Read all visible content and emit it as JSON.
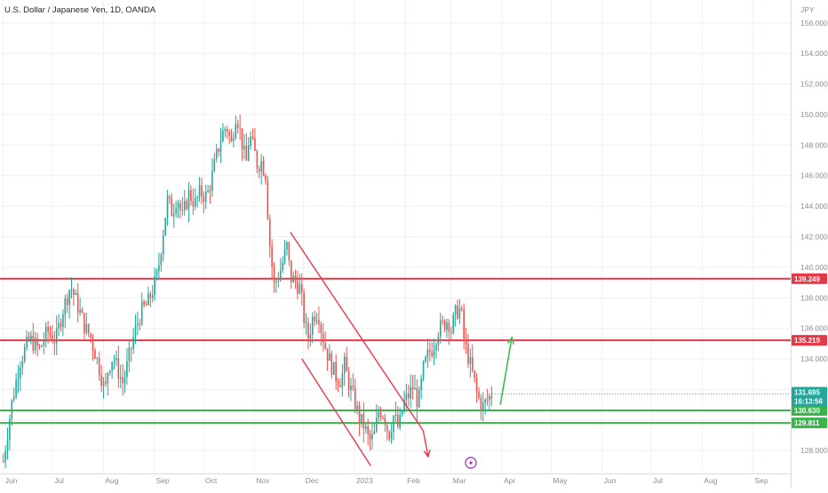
{
  "header": {
    "symbol_title": "U.S. Dollar / Japanese Yen, 1D, OANDA",
    "currency": "JPY"
  },
  "colors": {
    "up": "#26a69a",
    "down": "#ef5350",
    "resistance": "#e53947",
    "support": "#3ab54a",
    "channel": "#e53947",
    "arrow": "#3ab54a",
    "grid": "#eef0f3"
  },
  "chart_data": {
    "type": "candlestick",
    "ylim": [
      126.5,
      157.5
    ],
    "y_ticks": [
      "128.000",
      "130.000",
      "132.000",
      "134.000",
      "136.000",
      "138.000",
      "140.000",
      "142.000",
      "144.000",
      "146.000",
      "148.000",
      "150.000",
      "152.000",
      "154.000",
      "156.000"
    ],
    "x_ticks": [
      {
        "label": "Jun",
        "day": 0
      },
      {
        "label": "Jul",
        "day": 30
      },
      {
        "label": "Aug",
        "day": 61
      },
      {
        "label": "Sep",
        "day": 92
      },
      {
        "label": "Oct",
        "day": 122
      },
      {
        "label": "Nov",
        "day": 153
      },
      {
        "label": "Dec",
        "day": 183
      },
      {
        "label": "2023",
        "day": 214
      },
      {
        "label": "Feb",
        "day": 245
      },
      {
        "label": "Mar",
        "day": 273
      },
      {
        "label": "Apr",
        "day": 304
      },
      {
        "label": "May",
        "day": 334
      },
      {
        "label": "Jun",
        "day": 365
      },
      {
        "label": "Jul",
        "day": 395
      },
      {
        "label": "Aug",
        "day": 426
      },
      {
        "label": "Sep",
        "day": 457
      }
    ],
    "x_range_days": [
      -2,
      480
    ],
    "price_path": [
      [
        0,
        127.3
      ],
      [
        5,
        131
      ],
      [
        10,
        133.8
      ],
      [
        16,
        135.3
      ],
      [
        22,
        134.6
      ],
      [
        27,
        135.8
      ],
      [
        32,
        135.2
      ],
      [
        36,
        137.1
      ],
      [
        41,
        138.8
      ],
      [
        45,
        137.6
      ],
      [
        50,
        136.0
      ],
      [
        53,
        135.5
      ],
      [
        56,
        134.4
      ],
      [
        59,
        133.2
      ],
      [
        62,
        131.8
      ],
      [
        64,
        133.5
      ],
      [
        67,
        134.2
      ],
      [
        70,
        133.2
      ],
      [
        73,
        132.4
      ],
      [
        76,
        133.8
      ],
      [
        80,
        135.7
      ],
      [
        84,
        137.1
      ],
      [
        88,
        137.6
      ],
      [
        91,
        138.5
      ],
      [
        94,
        139.5
      ],
      [
        97,
        142.0
      ],
      [
        100,
        144.4
      ],
      [
        103,
        143.6
      ],
      [
        106,
        144.7
      ],
      [
        109,
        143.2
      ],
      [
        113,
        144.8
      ],
      [
        117,
        144.2
      ],
      [
        120,
        144.9
      ],
      [
        124,
        144.6
      ],
      [
        127,
        145.8
      ],
      [
        130,
        147.3
      ],
      [
        133,
        148.6
      ],
      [
        136,
        149.3
      ],
      [
        139,
        148.0
      ],
      [
        142,
        150.2
      ],
      [
        145,
        148.5
      ],
      [
        148,
        146.7
      ],
      [
        150,
        148.7
      ],
      [
        153,
        147.6
      ],
      [
        155,
        146.6
      ],
      [
        157,
        147.0
      ],
      [
        160,
        146.1
      ],
      [
        162,
        142.0
      ],
      [
        165,
        138.8
      ],
      [
        168,
        139.5
      ],
      [
        171,
        140.6
      ],
      [
        173,
        141.4
      ],
      [
        175,
        139.3
      ],
      [
        178,
        139.1
      ],
      [
        181,
        138.6
      ],
      [
        184,
        136.1
      ],
      [
        186,
        135.4
      ],
      [
        189,
        136.9
      ],
      [
        192,
        137.1
      ],
      [
        194,
        135.8
      ],
      [
        197,
        134.5
      ],
      [
        200,
        133.6
      ],
      [
        203,
        132.8
      ],
      [
        206,
        132.6
      ],
      [
        208,
        133.6
      ],
      [
        211,
        132.2
      ],
      [
        214,
        131.3
      ],
      [
        217,
        130.1
      ],
      [
        220,
        129.6
      ],
      [
        223,
        128.6
      ],
      [
        226,
        128.9
      ],
      [
        229,
        130.7
      ],
      [
        232,
        130.4
      ],
      [
        235,
        129.0
      ],
      [
        238,
        130.3
      ],
      [
        241,
        129.4
      ],
      [
        244,
        131.1
      ],
      [
        247,
        131.6
      ],
      [
        250,
        132.2
      ],
      [
        253,
        131.0
      ],
      [
        256,
        133.3
      ],
      [
        259,
        134.3
      ],
      [
        262,
        134.8
      ],
      [
        265,
        135.9
      ],
      [
        268,
        136.2
      ],
      [
        271,
        136.6
      ],
      [
        273,
        135.9
      ],
      [
        276,
        137.1
      ],
      [
        279,
        137.3
      ],
      [
        281,
        135.1
      ],
      [
        284,
        133.9
      ],
      [
        287,
        132.6
      ],
      [
        289,
        131.6
      ],
      [
        292,
        130.8
      ],
      [
        295,
        131.3
      ],
      [
        298,
        131.7
      ]
    ],
    "candle_step_days": 1.3,
    "series": [
      {
        "level": 139.249,
        "label": "139.249",
        "style": "resistance"
      },
      {
        "level": 135.219,
        "label": "135.219",
        "style": "resistance"
      },
      {
        "level": 130.63,
        "label": "130.630",
        "style": "support"
      },
      {
        "level": 129.811,
        "label": "129.811",
        "style": "support"
      }
    ],
    "current_price": {
      "price": "131.695",
      "countdown": "16:13:56",
      "value": 131.695
    },
    "annotations": {
      "channel_upper": [
        [
          175,
          142.3
        ],
        [
          256,
          129.3
        ]
      ],
      "channel_lower": [
        [
          182,
          134.0
        ],
        [
          224,
          127.0
        ]
      ],
      "channel_arrow_tip": [
        259,
        127.6
      ],
      "forecast_arrow": [
        [
          303,
          131.0
        ],
        [
          310,
          135.4
        ]
      ],
      "event_marker_day": 285
    }
  },
  "footer": {
    "event_icon": "lightning-icon"
  }
}
